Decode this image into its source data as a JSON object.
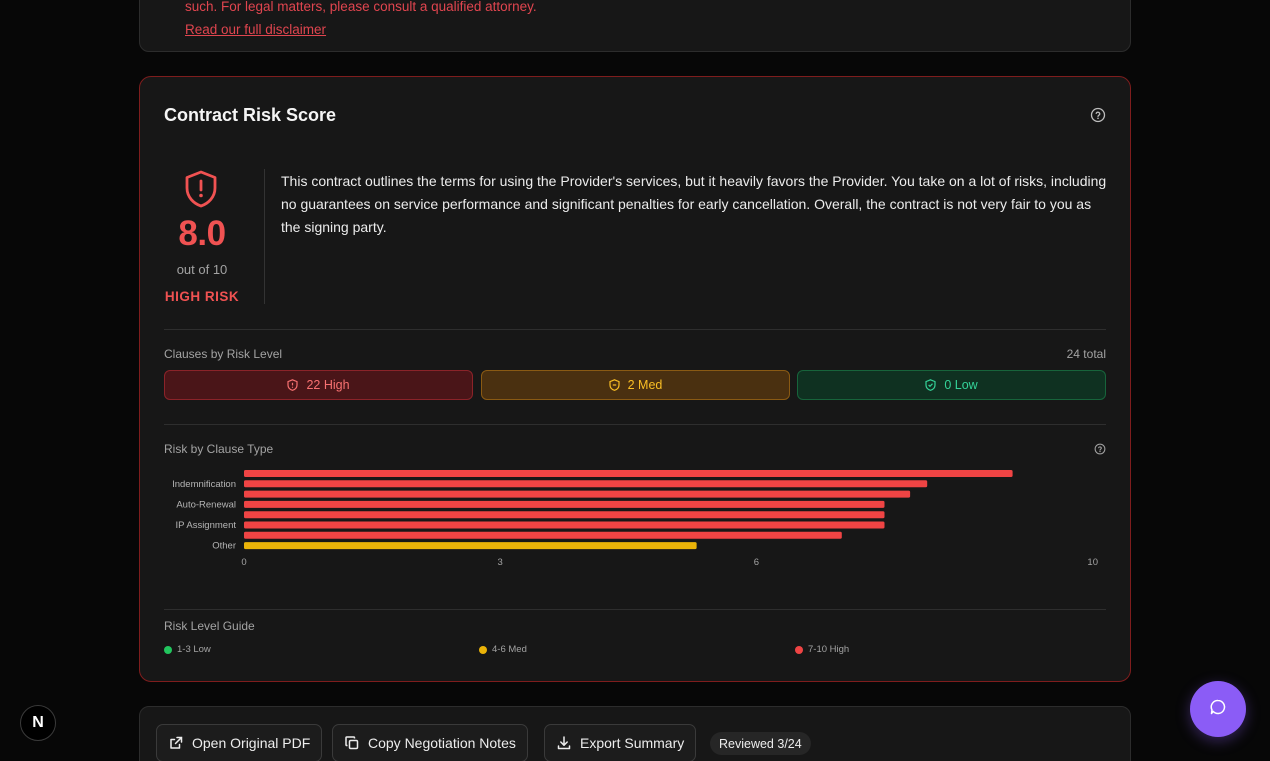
{
  "disclaimer": {
    "text": "such. For legal matters, please consult a qualified attorney.",
    "link": "Read our full disclaimer"
  },
  "risk_card": {
    "title": "Contract Risk Score",
    "help_icon": "question-circle-icon",
    "score": "8.0",
    "out_of": "out of 10",
    "level": "HIGH RISK",
    "summary": "This contract outlines the terms for using the Provider's services, but it heavily favors the Provider. You take on a lot of risks, including no guarantees on service performance and significant penalties for early cancellation. Overall, the contract is not very fair to you as the signing party.",
    "clauses_label": "Clauses by Risk Level",
    "total": "24 total",
    "pills": {
      "high": "22 High",
      "med": "2 Med",
      "low": "0 Low"
    },
    "clause_type_label": "Risk by Clause Type",
    "guide_label": "Risk Level Guide",
    "guide": {
      "low": "1-3 Low",
      "med": "4-6 Med",
      "high": "7-10 High"
    }
  },
  "chart_data": {
    "type": "bar",
    "orientation": "horizontal",
    "categories": [
      "",
      "Indemnification",
      "",
      "Auto-Renewal",
      "",
      "IP Assignment",
      "",
      "Other"
    ],
    "values": [
      9.0,
      8.0,
      7.8,
      7.5,
      7.5,
      7.5,
      7.0,
      5.3
    ],
    "colors": [
      "#ef4444",
      "#ef4444",
      "#ef4444",
      "#ef4444",
      "#ef4444",
      "#ef4444",
      "#ef4444",
      "#eab308"
    ],
    "xticks": [
      0,
      3,
      6,
      10
    ],
    "xlim": [
      0,
      10
    ],
    "grid": false
  },
  "actions": {
    "open_pdf": "Open Original PDF",
    "copy_notes": "Copy Negotiation Notes",
    "export": "Export Summary",
    "reviewed": "Reviewed 3/24"
  },
  "n_badge": "N",
  "colors": {
    "high": "#ef4444",
    "med": "#eab308",
    "low": "#22c55e",
    "accent": "#8b5cf6"
  }
}
